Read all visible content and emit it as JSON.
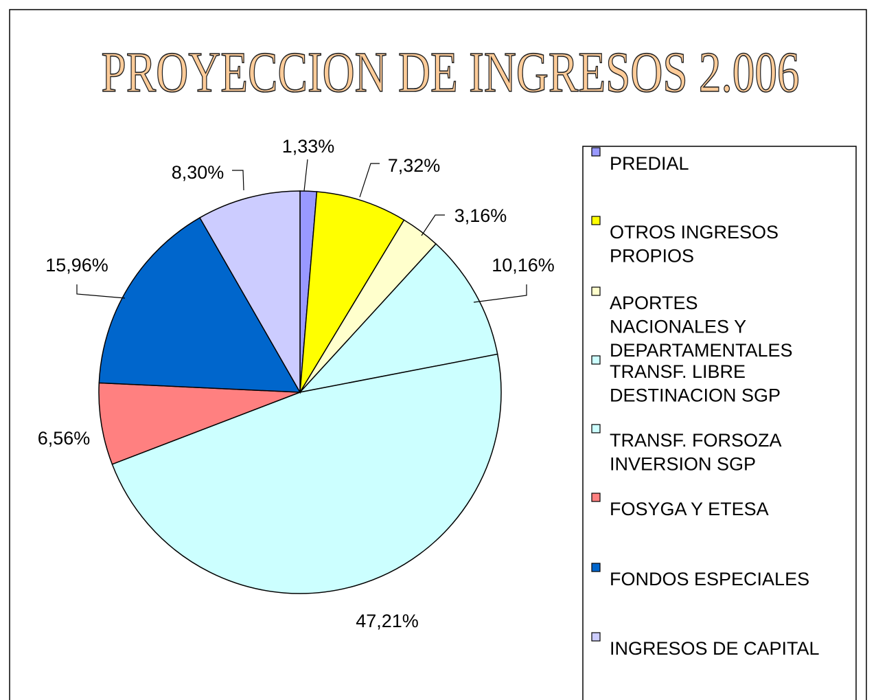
{
  "chart_data": {
    "type": "pie",
    "title": "PROYECCION DE INGRESOS 2.006",
    "categories": [
      "PREDIAL",
      "OTROS INGRESOS PROPIOS",
      "APORTES NACIONALES Y DEPARTAMENTALES",
      "TRANSF. LIBRE DESTINACION SGP",
      "TRANSF. FORSOZA INVERSION SGP",
      "FOSYGA Y ETESA",
      "FONDOS ESPECIALES",
      "INGRESOS DE CAPITAL"
    ],
    "values": [
      1.33,
      7.32,
      3.16,
      10.16,
      47.21,
      6.56,
      15.96,
      8.3
    ],
    "value_labels": [
      "1,33%",
      "7,32%",
      "3,16%",
      "10,16%",
      "47,21%",
      "6,56%",
      "15,96%",
      "8,30%"
    ],
    "colors": [
      "#9999ff",
      "#ffff00",
      "#ffffcc",
      "#ccffff",
      "#ccffff",
      "#ff8080",
      "#0066cc",
      "#ccccff"
    ],
    "legend": "right"
  }
}
